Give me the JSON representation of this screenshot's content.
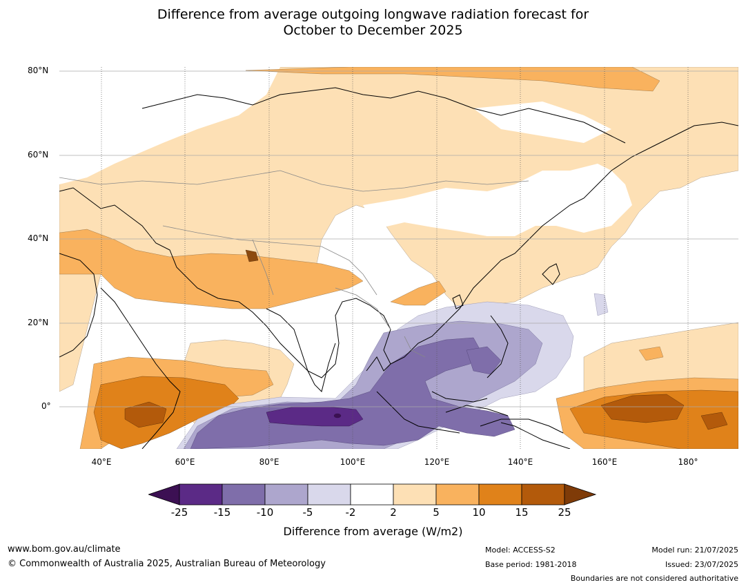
{
  "title_line1": "Difference from average outgoing longwave radiation forecast for",
  "title_line2": "October to December 2025",
  "map": {
    "region_lon_range": [
      "30°E",
      "192°E"
    ],
    "region_lat_range": [
      "10°S",
      "81°N"
    ],
    "lat_labels": [
      "80°N",
      "60°N",
      "40°N",
      "20°N",
      "0°"
    ],
    "lon_labels": [
      "40°E",
      "60°E",
      "80°E",
      "100°E",
      "120°E",
      "140°E",
      "160°E",
      "180°"
    ],
    "gridlines": true,
    "anomaly_areas": [
      {
        "region": "Central & West Asia",
        "category": "5 to 10"
      },
      {
        "region": "Southern Arabian Sea / East Africa coast",
        "category": "10 to 15"
      },
      {
        "region": "Eastern Indian Ocean south of equator",
        "category": "-15 to -25"
      },
      {
        "region": "Maritime Continent / Philippines",
        "category": "-10 to -15"
      },
      {
        "region": "Central equatorial Pacific",
        "category": "15 to 25"
      },
      {
        "region": "Northern Siberia",
        "category": "2 to 5"
      }
    ]
  },
  "colorbar": {
    "ticks": [
      "-25",
      "-15",
      "-10",
      "-5",
      "-2",
      "2",
      "5",
      "10",
      "15",
      "25"
    ],
    "colors": [
      "#3c1053",
      "#5b2a86",
      "#7f6eaa",
      "#ada6cd",
      "#d9d8eb",
      "#ffffff",
      "#fde0b5",
      "#f9b25e",
      "#e0821a",
      "#b35a0b",
      "#7f3b08"
    ],
    "label": "Difference from average (W/m2)"
  },
  "footer": {
    "website": "www.bom.gov.au/climate",
    "copyright": "© Commonwealth of Australia 2025, Australian Bureau of Meteorology",
    "model": "Model: ACCESS-S2",
    "base_period": "Base period: 1981-2018",
    "model_run": "Model run: 21/07/2025",
    "issued": "Issued: 23/07/2025",
    "disclaimer": "Boundaries are not considered authoritative"
  }
}
